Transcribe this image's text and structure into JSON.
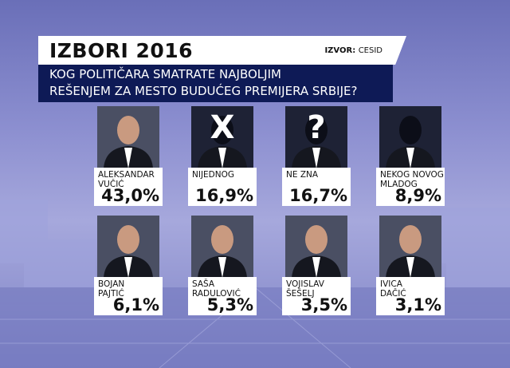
{
  "header": {
    "title": "IZBORI 2016",
    "source_label": "IZVOR:",
    "source": "CESID",
    "question": [
      "KOG POLITIČARA SMATRATE NAJBOLJIM",
      "REŠENJEM ZA MESTO BUDUĆEG PREMIJERA SRBIJE?"
    ]
  },
  "candidates": [
    {
      "name": [
        "ALEKSANDAR",
        "VUČIĆ"
      ],
      "value": "43,0%"
    },
    {
      "name": [
        "NIJEDNOG"
      ],
      "value": "16,9%",
      "icon": "X"
    },
    {
      "name": [
        "NE ZNA"
      ],
      "value": "16,7%",
      "icon": "?"
    },
    {
      "name": [
        "NEKOG NOVOG",
        "MLADOG"
      ],
      "value": "8,9%"
    },
    {
      "name": [
        "BOJAN",
        "PAJTIĆ"
      ],
      "value": "6,1%"
    },
    {
      "name": [
        "SAŠA",
        "RADULOVIĆ"
      ],
      "value": "5,3%"
    },
    {
      "name": [
        "VOJISLAV",
        "ŠEŠELJ"
      ],
      "value": "3,5%"
    },
    {
      "name": [
        "IVICA",
        "DAČIĆ"
      ],
      "value": "3,1%"
    }
  ]
}
